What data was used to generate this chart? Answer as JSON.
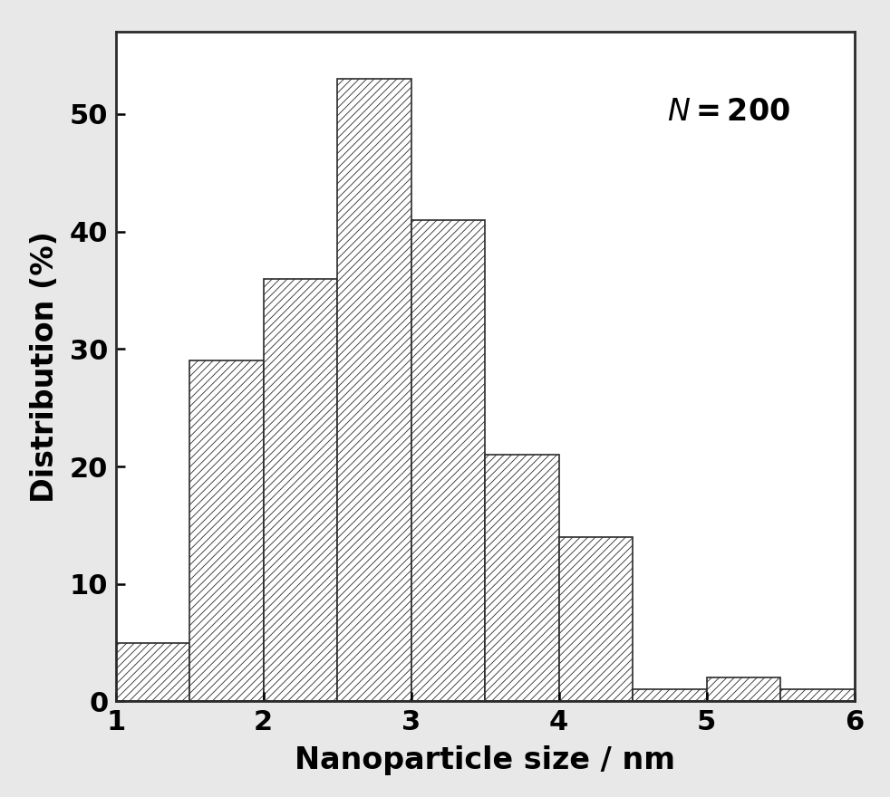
{
  "bin_edges": [
    1.0,
    1.5,
    2.0,
    2.5,
    3.0,
    3.5,
    4.0,
    4.5,
    5.0,
    5.5,
    6.0
  ],
  "values": [
    5,
    29,
    36,
    53,
    41,
    21,
    14,
    1,
    2,
    1
  ],
  "xlabel": "Nanoparticle size / nm",
  "ylabel": "Distribution (%)",
  "xlim": [
    1,
    6
  ],
  "ylim": [
    0,
    57
  ],
  "yticks": [
    0,
    10,
    20,
    30,
    40,
    50
  ],
  "xticks": [
    1,
    2,
    3,
    4,
    5,
    6
  ],
  "bar_facecolor": "#ffffff",
  "bar_edgecolor": "#2b2b2b",
  "hatch": "////",
  "label_fontsize": 24,
  "tick_fontsize": 22,
  "annotation_fontsize": 24,
  "figure_facecolor": "#e8e8e8",
  "axes_facecolor": "#ffffff",
  "spine_linewidth": 2.0,
  "hatch_linewidth": 0.6
}
